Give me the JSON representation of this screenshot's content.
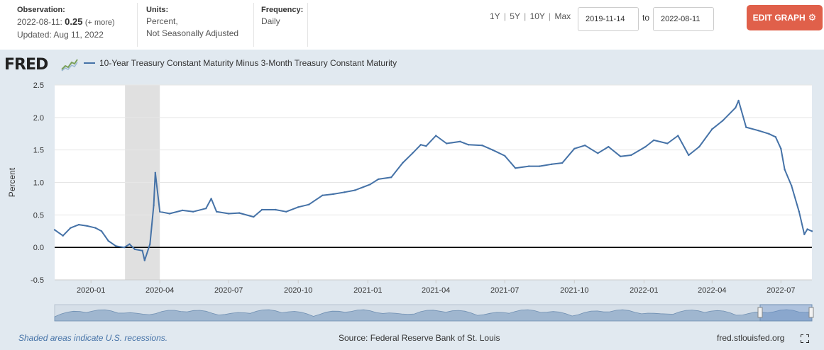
{
  "observation": {
    "label": "Observation:",
    "date": "2022-08-11:",
    "value": "0.25",
    "more": "(+ more)",
    "updated": "Updated: Aug 11, 2022"
  },
  "units": {
    "label": "Units:",
    "line1": "Percent,",
    "line2": "Not Seasonally Adjusted"
  },
  "frequency": {
    "label": "Frequency:",
    "value": "Daily"
  },
  "range_buttons": [
    "1Y",
    "5Y",
    "10Y",
    "Max"
  ],
  "date_range": {
    "start": "2019-11-14",
    "to_label": "to",
    "end": "2022-08-11"
  },
  "edit_button": "EDIT GRAPH",
  "logo": "FRED",
  "footer": {
    "recession_note": "Shaded areas indicate U.S. recessions.",
    "source": "Source: Federal Reserve Bank of St. Louis",
    "url": "fred.stlouisfed.org"
  },
  "colors": {
    "series": "#4572a7",
    "accent": "#e0604a",
    "panel_bg": "#e1e9f0",
    "recession": "#e0e0e0"
  },
  "icons": {
    "edit": "gear-icon",
    "logo_spark": "chart-line-icon",
    "fullscreen": "fullscreen-icon"
  },
  "chart_data": {
    "type": "line",
    "title": "",
    "ylabel": "Percent",
    "xlabel": "",
    "ylim": [
      -0.5,
      2.5
    ],
    "xlim": [
      "2019-11-14",
      "2022-08-11"
    ],
    "yticks": [
      -0.5,
      0.0,
      0.5,
      1.0,
      1.5,
      2.0,
      2.5
    ],
    "ytick_labels": [
      "-0.5",
      "0.0",
      "0.5",
      "1.0",
      "1.5",
      "2.0",
      "2.5"
    ],
    "xticks": [
      "2020-01-01",
      "2020-04-01",
      "2020-07-01",
      "2020-10-01",
      "2021-01-01",
      "2021-04-01",
      "2021-07-01",
      "2021-10-01",
      "2022-01-01",
      "2022-04-01",
      "2022-07-01"
    ],
    "xtick_labels": [
      "2020-01",
      "2020-04",
      "2020-07",
      "2020-10",
      "2021-01",
      "2021-04",
      "2021-07",
      "2021-10",
      "2022-01",
      "2022-04",
      "2022-07"
    ],
    "recessions": [
      [
        "2020-02-15",
        "2020-04-01"
      ]
    ],
    "grid": true,
    "zero_line": true,
    "series": [
      {
        "name": "10-Year Treasury Constant Maturity Minus 3-Month Treasury Constant Maturity",
        "x": [
          "2019-11-14",
          "2019-11-25",
          "2019-12-05",
          "2019-12-16",
          "2019-12-27",
          "2020-01-07",
          "2020-01-15",
          "2020-01-24",
          "2020-02-03",
          "2020-02-14",
          "2020-02-21",
          "2020-02-28",
          "2020-03-09",
          "2020-03-12",
          "2020-03-19",
          "2020-03-24",
          "2020-03-26",
          "2020-04-01",
          "2020-04-14",
          "2020-05-01",
          "2020-05-15",
          "2020-06-01",
          "2020-06-08",
          "2020-06-15",
          "2020-07-01",
          "2020-07-15",
          "2020-08-03",
          "2020-08-14",
          "2020-09-01",
          "2020-09-15",
          "2020-10-01",
          "2020-10-15",
          "2020-11-02",
          "2020-11-16",
          "2020-12-01",
          "2020-12-15",
          "2021-01-04",
          "2021-01-15",
          "2021-02-01",
          "2021-02-16",
          "2021-03-01",
          "2021-03-12",
          "2021-03-19",
          "2021-04-01",
          "2021-04-15",
          "2021-05-03",
          "2021-05-14",
          "2021-06-01",
          "2021-06-15",
          "2021-07-01",
          "2021-07-15",
          "2021-08-02",
          "2021-08-16",
          "2021-09-01",
          "2021-09-15",
          "2021-10-01",
          "2021-10-15",
          "2021-11-01",
          "2021-11-15",
          "2021-12-01",
          "2021-12-15",
          "2022-01-03",
          "2022-01-14",
          "2022-02-01",
          "2022-02-15",
          "2022-03-01",
          "2022-03-15",
          "2022-04-01",
          "2022-04-15",
          "2022-05-02",
          "2022-05-06",
          "2022-05-16",
          "2022-06-01",
          "2022-06-15",
          "2022-06-24",
          "2022-07-01",
          "2022-07-06",
          "2022-07-15",
          "2022-07-25",
          "2022-08-01",
          "2022-08-05",
          "2022-08-11"
        ],
        "values": [
          0.27,
          0.18,
          0.3,
          0.35,
          0.33,
          0.3,
          0.25,
          0.1,
          0.02,
          0.0,
          0.05,
          -0.03,
          -0.05,
          -0.2,
          0.05,
          0.65,
          1.15,
          0.55,
          0.52,
          0.57,
          0.55,
          0.6,
          0.75,
          0.55,
          0.52,
          0.53,
          0.47,
          0.58,
          0.58,
          0.55,
          0.62,
          0.66,
          0.8,
          0.82,
          0.85,
          0.88,
          0.97,
          1.05,
          1.08,
          1.3,
          1.45,
          1.58,
          1.56,
          1.72,
          1.6,
          1.63,
          1.58,
          1.57,
          1.5,
          1.41,
          1.22,
          1.25,
          1.25,
          1.28,
          1.3,
          1.52,
          1.57,
          1.45,
          1.55,
          1.4,
          1.42,
          1.55,
          1.65,
          1.6,
          1.72,
          1.42,
          1.55,
          1.82,
          1.95,
          2.15,
          2.26,
          1.85,
          1.8,
          1.75,
          1.7,
          1.52,
          1.2,
          0.95,
          0.55,
          0.2,
          0.28,
          0.25
        ]
      }
    ]
  }
}
